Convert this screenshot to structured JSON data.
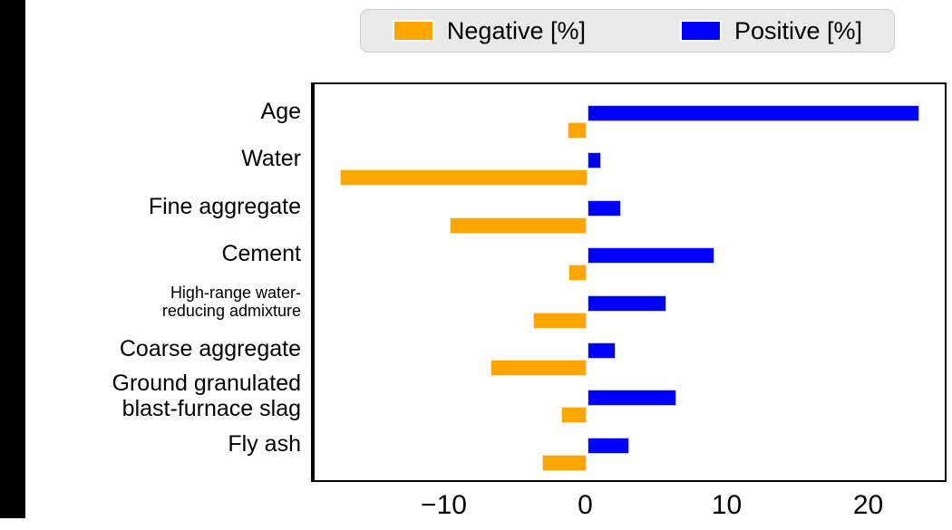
{
  "window": {
    "background_color": "#ffffff",
    "edge_strip_color": "#000000"
  },
  "legend": {
    "background_color": "#e9e9e9",
    "items": [
      {
        "label": "Negative [%]",
        "color": "#ffa500"
      },
      {
        "label": "Positive [%]",
        "color": "#0000ff"
      }
    ]
  },
  "chart_data": {
    "type": "bar",
    "orientation": "horizontal",
    "title": "",
    "xlabel": "",
    "ylabel": "",
    "grid": false,
    "zero_line": true,
    "legend_position": "top-center",
    "xlim": [
      -19.4,
      25.5
    ],
    "xticks": [
      -10,
      0,
      10,
      20
    ],
    "xtick_labels": [
      "−10",
      "0",
      "10",
      "20"
    ],
    "categories": [
      {
        "name": "Age",
        "lines": [
          "Age"
        ],
        "small_font": false
      },
      {
        "name": "Water",
        "lines": [
          "Water"
        ],
        "small_font": false
      },
      {
        "name": "Fine aggregate",
        "lines": [
          "Fine aggregate"
        ],
        "small_font": false
      },
      {
        "name": "Cement",
        "lines": [
          "Cement"
        ],
        "small_font": false
      },
      {
        "name": "High-range water-reducing admixture",
        "lines": [
          "High-range water-",
          "reducing admixture"
        ],
        "small_font": true
      },
      {
        "name": "Coarse aggregate",
        "lines": [
          "Coarse aggregate"
        ],
        "small_font": false
      },
      {
        "name": "Ground granulated blast-furnace slag",
        "lines": [
          "Ground granulated",
          "blast-furnace slag"
        ],
        "small_font": false
      },
      {
        "name": "Fly ash",
        "lines": [
          "Fly ash"
        ],
        "small_font": false
      }
    ],
    "series": [
      {
        "name": "Positive [%]",
        "color": "#0000ff",
        "values": [
          23.5,
          1.0,
          2.4,
          9.0,
          5.6,
          2.0,
          6.3,
          3.0
        ]
      },
      {
        "name": "Negative [%]",
        "color": "#ffa500",
        "values": [
          -1.4,
          -17.5,
          -9.7,
          -1.3,
          -3.8,
          -6.8,
          -1.8,
          -3.2
        ]
      }
    ]
  }
}
